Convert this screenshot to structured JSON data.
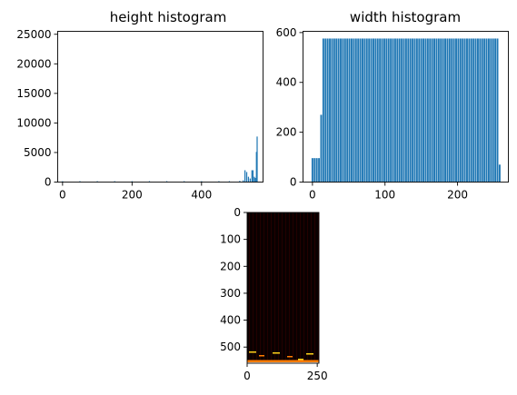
{
  "colors": {
    "bar": "#1f77b4",
    "image_bg": "#0a0000",
    "image_stripe": "#2a0000",
    "hot_orange": "#ff7a00",
    "hot_yellow": "#ffd21a"
  },
  "chart_data": [
    {
      "type": "bar",
      "title": "height histogram",
      "xlabel": "",
      "ylabel": "",
      "xlim": [
        -14,
        577
      ],
      "ylim": [
        0,
        25500
      ],
      "xticks": [
        0,
        200,
        400
      ],
      "yticks": [
        0,
        5000,
        10000,
        15000,
        20000,
        25000
      ],
      "series": [
        {
          "x": [
            0,
            50,
            100,
            150,
            200,
            250,
            300,
            350,
            400,
            450,
            480,
            510,
            520,
            525,
            530,
            535,
            540,
            545,
            548,
            552,
            555,
            558,
            560
          ],
          "values": [
            150,
            150,
            150,
            150,
            150,
            150,
            150,
            150,
            150,
            150,
            150,
            200,
            300,
            2000,
            1700,
            900,
            600,
            2000,
            2000,
            900,
            700,
            5100,
            7700
          ]
        }
      ]
    },
    {
      "type": "bar",
      "title": "width histogram",
      "xlabel": "",
      "ylabel": "",
      "xlim": [
        -13,
        270
      ],
      "ylim": [
        0,
        605
      ],
      "xticks": [
        0,
        100,
        200
      ],
      "yticks": [
        0,
        200,
        400,
        600
      ],
      "series": [
        {
          "x": [
            0,
            3,
            6,
            9,
            12,
            15,
            18,
            21,
            24,
            27,
            30,
            33,
            36,
            39,
            42,
            45,
            48,
            51,
            54,
            57,
            60,
            63,
            66,
            69,
            72,
            75,
            78,
            81,
            84,
            87,
            90,
            93,
            96,
            99,
            102,
            105,
            108,
            111,
            114,
            117,
            120,
            123,
            126,
            129,
            132,
            135,
            138,
            141,
            144,
            147,
            150,
            153,
            156,
            159,
            162,
            165,
            168,
            171,
            174,
            177,
            180,
            183,
            186,
            189,
            192,
            195,
            198,
            201,
            204,
            207,
            210,
            213,
            216,
            219,
            222,
            225,
            228,
            231,
            234,
            237,
            240,
            243,
            246,
            249,
            252,
            255,
            258
          ],
          "values": [
            96,
            96,
            96,
            96,
            270,
            576,
            576,
            576,
            576,
            576,
            576,
            576,
            576,
            576,
            576,
            576,
            576,
            576,
            576,
            576,
            576,
            576,
            576,
            576,
            576,
            576,
            576,
            576,
            576,
            576,
            576,
            576,
            576,
            576,
            576,
            576,
            576,
            576,
            576,
            576,
            576,
            576,
            576,
            576,
            576,
            576,
            576,
            576,
            576,
            576,
            576,
            576,
            576,
            576,
            576,
            576,
            576,
            576,
            576,
            576,
            576,
            576,
            576,
            576,
            576,
            576,
            576,
            576,
            576,
            576,
            576,
            576,
            576,
            576,
            576,
            576,
            576,
            576,
            576,
            576,
            576,
            576,
            576,
            576,
            576,
            576,
            70
          ]
        }
      ]
    },
    {
      "type": "heatmap",
      "title": "",
      "xlim": [
        0,
        256
      ],
      "ylim": [
        560,
        0
      ],
      "xticks": [
        0,
        250
      ],
      "yticks": [
        0,
        100,
        200,
        300,
        400,
        500
      ],
      "colormap": "hot"
    }
  ]
}
